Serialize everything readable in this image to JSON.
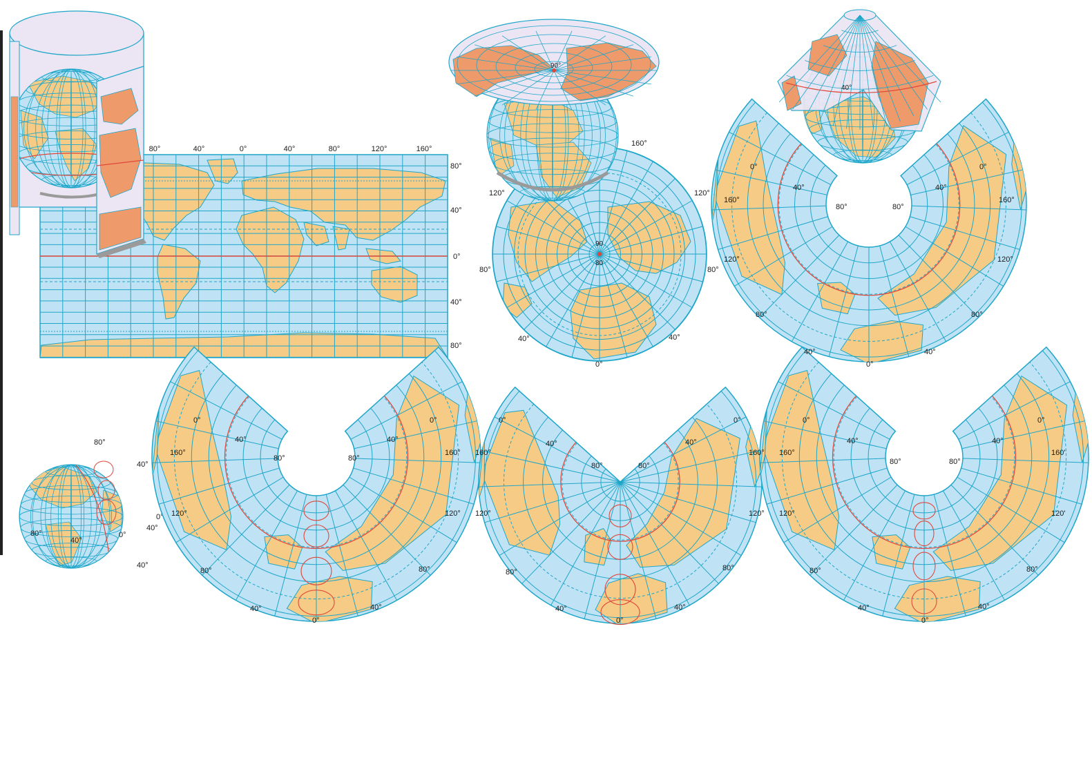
{
  "colors": {
    "ocean": "#bfe3f5",
    "land": "#f6cb86",
    "land_projected": "#ef9a6a",
    "grid": "#1ea6c9",
    "equator": "#e0473a",
    "surface": "#ece6f4",
    "shadow": "#9a9a9a"
  },
  "icons": [
    "cylinder-projection-icon",
    "plane-projection-icon",
    "cone-projection-icon",
    "globe-icon"
  ],
  "cylindrical": {
    "top_labels": [
      "80°",
      "40°",
      "0°",
      "40°",
      "80°",
      "120°",
      "160°"
    ],
    "right_labels": [
      "80°",
      "40°",
      "0°",
      "40°",
      "80°"
    ]
  },
  "azimuthal": {
    "pole_label": "90",
    "center_label": "90",
    "center_label_2": "80",
    "labels": [
      "160°",
      "120°",
      "120°",
      "80°",
      "80°",
      "40°",
      "40°",
      "0°"
    ],
    "cap_pole_label": "90°"
  },
  "conic_top": {
    "cap_label": "40°",
    "labels": [
      "0°",
      "0°",
      "40°",
      "40°",
      "160°",
      "160°",
      "80°",
      "80°",
      "120°",
      "120°",
      "80°",
      "80°",
      "40°",
      "40°",
      "0°"
    ]
  },
  "globe_small": {
    "labels": [
      "80°",
      "40°",
      "0°",
      "40°",
      "80°",
      "40°",
      "0°",
      "40°"
    ]
  },
  "conic_1": {
    "labels": [
      "0°",
      "0°",
      "40°",
      "40°",
      "160°",
      "160°",
      "80°",
      "80°",
      "120°",
      "120°",
      "80°",
      "80°",
      "40°",
      "40°",
      "0°"
    ]
  },
  "conic_2": {
    "labels": [
      "0°",
      "0°",
      "40°",
      "40°",
      "160°",
      "160°",
      "80°",
      "80°",
      "120°",
      "120°",
      "80°",
      "80°",
      "40°",
      "40°",
      "0°"
    ]
  },
  "conic_3": {
    "labels": [
      "0°",
      "0°",
      "40°",
      "40°",
      "160°",
      "160'",
      "80°",
      "80°",
      "120°",
      "120'",
      "80°",
      "80°",
      "40°",
      "40°",
      "0°"
    ]
  }
}
